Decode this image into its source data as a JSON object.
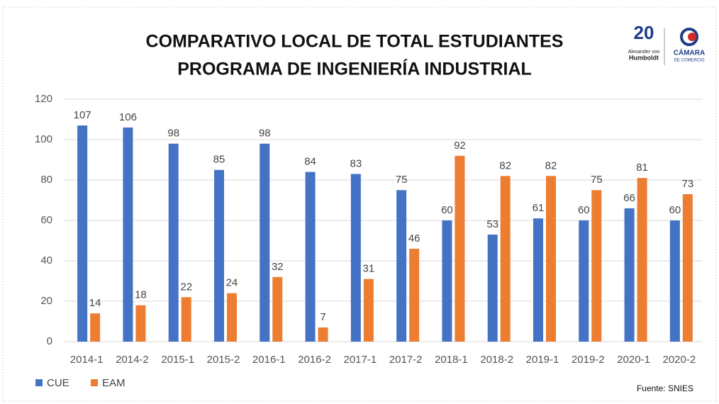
{
  "chart_data": {
    "type": "bar",
    "title": "COMPARATIVO LOCAL DE TOTAL ESTUDIANTES",
    "subtitle": "PROGRAMA DE INGENIERÍA INDUSTRIAL",
    "categories": [
      "2014-1",
      "2014-2",
      "2015-1",
      "2015-2",
      "2016-1",
      "2016-2",
      "2017-1",
      "2017-2",
      "2018-1",
      "2018-2",
      "2019-1",
      "2019-2",
      "2020-1",
      "2020-2"
    ],
    "series": [
      {
        "name": "CUE",
        "color": "#4472c4",
        "values": [
          107,
          106,
          98,
          85,
          98,
          84,
          83,
          75,
          60,
          53,
          61,
          60,
          66,
          60
        ]
      },
      {
        "name": "EAM",
        "color": "#ed7d31",
        "values": [
          14,
          18,
          22,
          24,
          32,
          7,
          31,
          46,
          92,
          82,
          82,
          75,
          81,
          73
        ]
      }
    ],
    "ylim": [
      0,
      120
    ],
    "yticks": [
      0,
      20,
      40,
      60,
      80,
      100,
      120
    ],
    "grid": true,
    "legend": "bottom-left",
    "source": "Fuente: SNIES",
    "logos": [
      "20",
      "Alexander von",
      "Humboldt",
      "CÁMARA",
      "DE COMERCIO"
    ]
  }
}
